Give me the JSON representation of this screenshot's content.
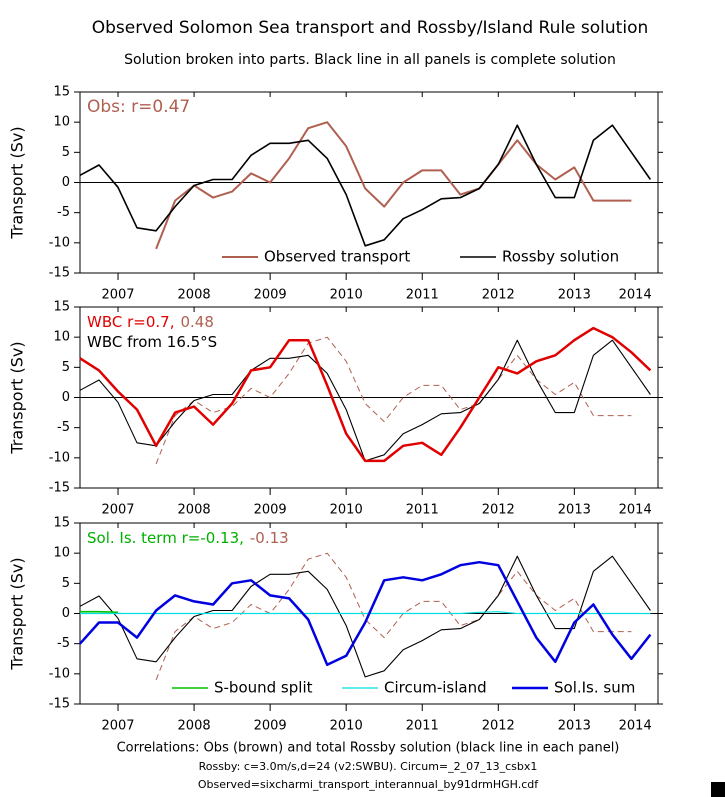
{
  "title": "Observed Solomon Sea transport and Rossby/Island Rule solution",
  "subtitle": "Solution broken into parts. Black line in all panels is complete solution",
  "footnotes": [
    "Correlations: Obs (brown) and total Rossby solution (black line in each panel)",
    "Rossby: c=3.0m/s,d=24 (v2:SWBU). Circum=_2_07_13_csbx1",
    "Observed=sixcharmi_transport_interannual_by91drmHGH.cdf"
  ],
  "chart_data": [
    {
      "type": "line",
      "ylabel": "Transport (Sv)",
      "annotations": [
        [
          {
            "text": "Obs: r=0.47",
            "color": "#b06050"
          }
        ]
      ],
      "x": [
        2007,
        2007.25,
        2007.5,
        2007.75,
        2008,
        2008.25,
        2008.5,
        2008.75,
        2009,
        2009.25,
        2009.5,
        2009.75,
        2010,
        2010.25,
        2010.5,
        2010.75,
        2011,
        2011.25,
        2011.5,
        2011.75,
        2012,
        2012.25,
        2012.5,
        2012.75,
        2013,
        2013.25,
        2013.5,
        2013.75,
        2014,
        2014.25,
        2014.5
      ],
      "series": [
        {
          "name": "Observed transport",
          "color": "#b06050",
          "width": 2,
          "dash": false,
          "values": [
            null,
            null,
            null,
            null,
            -11,
            -3,
            -0.5,
            -2.5,
            -1.5,
            1.5,
            0,
            4,
            9,
            10,
            6,
            -1,
            -4,
            0,
            2,
            2,
            -2,
            -1,
            3,
            7,
            3,
            0.5,
            2.5,
            -3,
            -3,
            -3,
            null
          ]
        },
        {
          "name": "Rossby solution",
          "color": "#000000",
          "width": 1.6,
          "dash": false,
          "values": [
            1.2,
            2.9,
            -0.8,
            -7.5,
            -8,
            -4,
            -0.5,
            0.5,
            0.5,
            4.5,
            6.5,
            6.5,
            7,
            4,
            -2,
            -10.5,
            -9.5,
            -6,
            -4.5,
            -2.7,
            -2.5,
            -1,
            3,
            9.5,
            3,
            -2.5,
            -2.5,
            7,
            9.5,
            5,
            0.5
          ]
        }
      ],
      "xlim": [
        2007,
        2014.6
      ],
      "xticks": [
        {
          "value": 2007.5,
          "label": "2007"
        },
        {
          "value": 2008.5,
          "label": "2008"
        },
        {
          "value": 2009.5,
          "label": "2009"
        },
        {
          "value": 2010.5,
          "label": "2010"
        },
        {
          "value": 2011.5,
          "label": "2011"
        },
        {
          "value": 2012.5,
          "label": "2012"
        },
        {
          "value": 2013.5,
          "label": "2013"
        },
        {
          "value": 2014.3,
          "label": "2014"
        }
      ],
      "ylim": [
        -15,
        15
      ],
      "yticks": [
        -15,
        -10,
        -5,
        0,
        5,
        10,
        15
      ]
    },
    {
      "type": "line",
      "ylabel": "Transport (Sv)",
      "annotations": [
        [
          {
            "text": "WBC r=0.7,",
            "color": "#e00000"
          },
          {
            "text": "0.48",
            "color": "#b06050"
          }
        ],
        [
          {
            "text": "WBC from 16.5°S",
            "color": "#000000"
          }
        ]
      ],
      "x": [
        2007,
        2007.25,
        2007.5,
        2007.75,
        2008,
        2008.25,
        2008.5,
        2008.75,
        2009,
        2009.25,
        2009.5,
        2009.75,
        2010,
        2010.25,
        2010.5,
        2010.75,
        2011,
        2011.25,
        2011.5,
        2011.75,
        2012,
        2012.25,
        2012.5,
        2012.75,
        2013,
        2013.25,
        2013.5,
        2013.75,
        2014,
        2014.25,
        2014.5
      ],
      "series": [
        {
          "color": "#b06050",
          "width": 1,
          "dash": true,
          "values": [
            null,
            null,
            null,
            null,
            -11,
            -3,
            -0.5,
            -2.5,
            -1.5,
            1.5,
            0,
            4,
            9,
            10,
            6,
            -1,
            -4,
            0,
            2,
            2,
            -2,
            -1,
            3,
            7,
            3,
            0.5,
            2.5,
            -3,
            -3,
            -3,
            null
          ]
        },
        {
          "color": "#000000",
          "width": 1.1,
          "dash": false,
          "values": [
            1.2,
            2.9,
            -0.8,
            -7.5,
            -8,
            -4,
            -0.5,
            0.5,
            0.5,
            4.5,
            6.5,
            6.5,
            7,
            4,
            -2,
            -10.5,
            -9.5,
            -6,
            -4.5,
            -2.7,
            -2.5,
            -1,
            3,
            9.5,
            3,
            -2.5,
            -2.5,
            7,
            9.5,
            5,
            0.5
          ]
        },
        {
          "color": "#e00000",
          "width": 2.5,
          "dash": false,
          "values": [
            6.5,
            4.5,
            1,
            -2,
            -8,
            -2.5,
            -1.5,
            -4.5,
            -1,
            4.5,
            5,
            9.5,
            9.5,
            2,
            -6,
            -10.5,
            -10.5,
            -8,
            -7.5,
            -9.5,
            -5,
            0,
            5,
            4,
            6,
            7,
            9.5,
            11.5,
            10,
            7.5,
            4.5
          ]
        }
      ],
      "xlim": [
        2007,
        2014.6
      ],
      "xticks": [
        {
          "value": 2007.5,
          "label": "2007"
        },
        {
          "value": 2008.5,
          "label": "2008"
        },
        {
          "value": 2009.5,
          "label": "2009"
        },
        {
          "value": 2010.5,
          "label": "2010"
        },
        {
          "value": 2011.5,
          "label": "2011"
        },
        {
          "value": 2012.5,
          "label": "2012"
        },
        {
          "value": 2013.5,
          "label": "2013"
        },
        {
          "value": 2014.3,
          "label": "2014"
        }
      ],
      "ylim": [
        -15,
        15
      ],
      "yticks": [
        -15,
        -10,
        -5,
        0,
        5,
        10,
        15
      ]
    },
    {
      "type": "line",
      "ylabel": "Transport (Sv)",
      "annotations": [
        [
          {
            "text": "Sol. Is. term r=-0.13,",
            "color": "#00b000"
          },
          {
            "text": "-0.13",
            "color": "#b06050"
          }
        ]
      ],
      "x": [
        2007,
        2007.25,
        2007.5,
        2007.75,
        2008,
        2008.25,
        2008.5,
        2008.75,
        2009,
        2009.25,
        2009.5,
        2009.75,
        2010,
        2010.25,
        2010.5,
        2010.75,
        2011,
        2011.25,
        2011.5,
        2011.75,
        2012,
        2012.25,
        2012.5,
        2012.75,
        2013,
        2013.25,
        2013.5,
        2013.75,
        2014,
        2014.25,
        2014.5
      ],
      "series": [
        {
          "color": "#b06050",
          "width": 1,
          "dash": true,
          "values": [
            null,
            null,
            null,
            null,
            -11,
            -3,
            -0.5,
            -2.5,
            -1.5,
            1.5,
            0,
            4,
            9,
            10,
            6,
            -1,
            -4,
            0,
            2,
            2,
            -2,
            -1,
            3,
            7,
            3,
            0.5,
            2.5,
            -3,
            -3,
            -3,
            null
          ]
        },
        {
          "color": "#000000",
          "width": 1.1,
          "dash": false,
          "values": [
            1.2,
            2.9,
            -0.8,
            -7.5,
            -8,
            -4,
            -0.5,
            0.5,
            0.5,
            4.5,
            6.5,
            6.5,
            7,
            4,
            -2,
            -10.5,
            -9.5,
            -6,
            -4.5,
            -2.7,
            -2.5,
            -1,
            3,
            9.5,
            3,
            -2.5,
            -2.5,
            7,
            9.5,
            5,
            0.5
          ]
        },
        {
          "name": "S-bound split",
          "color": "#00c000",
          "width": 1.6,
          "dash": false,
          "values": [
            0.3,
            0.3,
            0.2,
            null,
            null,
            null,
            null,
            null,
            null,
            null,
            null,
            null,
            null,
            null,
            null,
            null,
            null,
            null,
            null,
            null,
            null,
            null,
            null,
            null,
            null,
            null,
            null,
            null,
            null,
            null,
            null
          ]
        },
        {
          "name": "Circum-island",
          "color": "#00e0e0",
          "width": 1.2,
          "dash": false,
          "values": [
            0,
            0,
            0,
            0,
            0,
            0,
            0,
            0,
            0,
            0,
            0,
            0,
            0,
            0,
            0,
            0,
            0,
            0,
            0,
            0,
            0,
            0.2,
            0.3,
            0,
            0,
            0,
            0,
            0,
            0,
            0,
            0
          ]
        },
        {
          "name": "Sol.Is. sum",
          "color": "#0000e0",
          "width": 2.5,
          "dash": false,
          "values": [
            -5,
            -1.5,
            -1.5,
            -4,
            0.5,
            3,
            2,
            1.5,
            5,
            5.5,
            3,
            2.5,
            -1,
            -8.5,
            -7,
            -1.5,
            5.5,
            6,
            5.5,
            6.5,
            8,
            8.5,
            8,
            2,
            -4,
            -8,
            -1.5,
            1.5,
            -3.5,
            -7.5,
            -3.5
          ]
        }
      ],
      "xlim": [
        2007,
        2014.6
      ],
      "xticks": [
        {
          "value": 2007.5,
          "label": "2007"
        },
        {
          "value": 2008.5,
          "label": "2008"
        },
        {
          "value": 2009.5,
          "label": "2009"
        },
        {
          "value": 2010.5,
          "label": "2010"
        },
        {
          "value": 2011.5,
          "label": "2011"
        },
        {
          "value": 2012.5,
          "label": "2012"
        },
        {
          "value": 2013.5,
          "label": "2013"
        },
        {
          "value": 2014.3,
          "label": "2014"
        }
      ],
      "ylim": [
        -15,
        15
      ],
      "yticks": [
        -15,
        -10,
        -5,
        0,
        5,
        10,
        15
      ]
    }
  ]
}
